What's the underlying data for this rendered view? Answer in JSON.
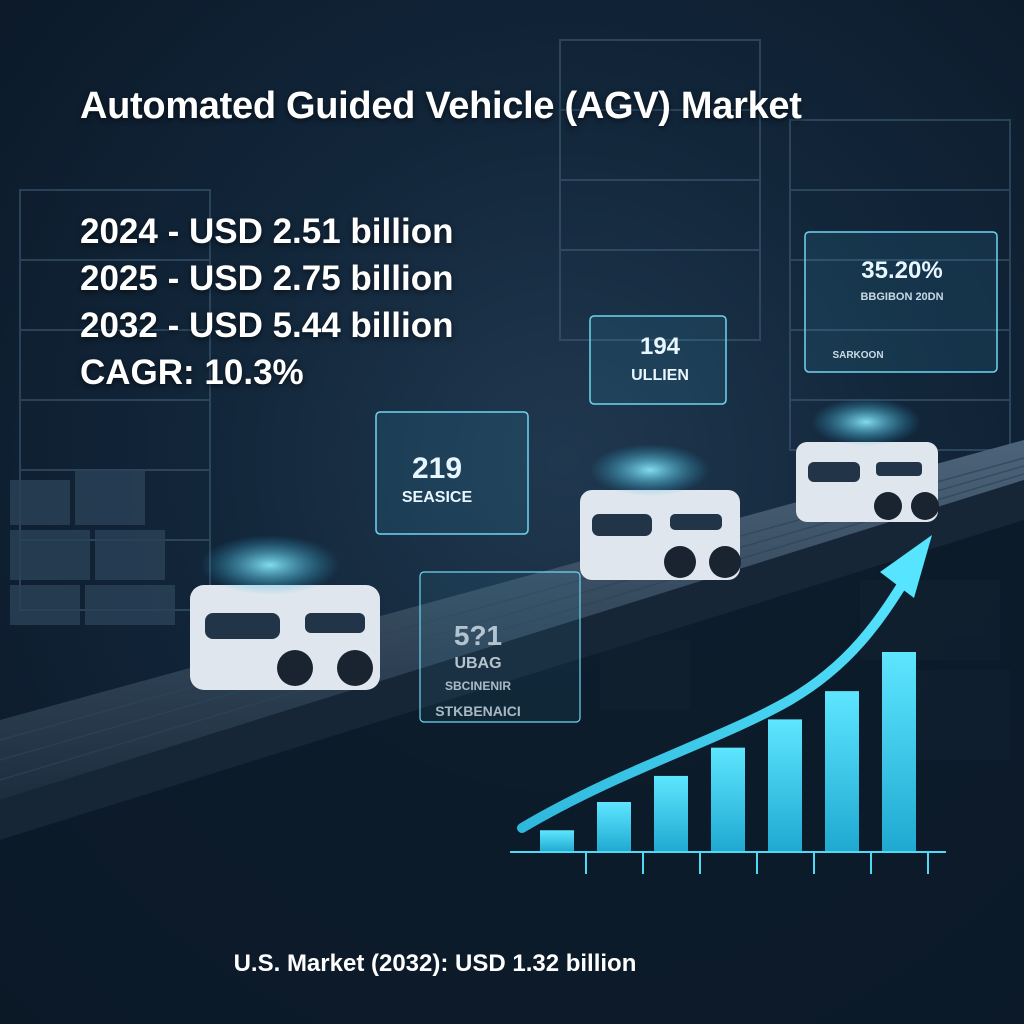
{
  "title": "Automated Guided Vehicle (AGV) Market",
  "stats": [
    "2024 - USD 2.51 billion",
    "2025 - USD 2.75 billion",
    "2032 - USD 5.44 billion",
    "CAGR: 10.3%"
  ],
  "footer": "U.S. Market (2032): USD 1.32 billion",
  "holo_panels": [
    {
      "value": "35.20%",
      "sub": "BBGIBON 20DN",
      "bottom": "SARKOON"
    },
    {
      "value": "194",
      "sub": "ULLIEN"
    },
    {
      "value": "219",
      "sub": "SEASICE"
    },
    {
      "value": "5?1",
      "sub": "UBAG",
      "sub2": "SBCINENIR",
      "bottom": "STKBENAICI"
    }
  ],
  "growth_bars": [
    1,
    2.3,
    3.5,
    4.8,
    6.1,
    7.4,
    9.2
  ],
  "colors": {
    "accent": "#3fd8f2",
    "background": "#0f2236",
    "text": "#ffffff"
  }
}
